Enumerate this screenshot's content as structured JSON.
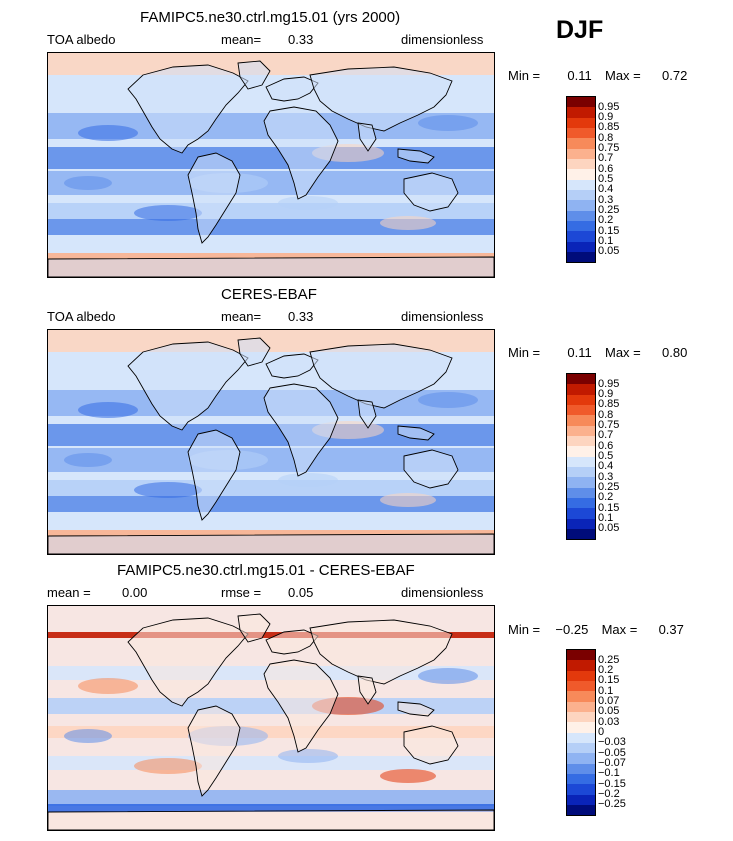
{
  "season": "DJF",
  "panels": [
    {
      "title": "FAMIPC5.ne30.ctrl.mg15.01 (yrs 2000)",
      "left_label": "TOA albedo",
      "mid_label": "mean=",
      "mid_value": "0.33",
      "units": "dimensionless",
      "min_label": "Min =",
      "min_value": "0.11",
      "max_label": "Max =",
      "max_value": "0.72",
      "levels": [
        "0.95",
        "0.9",
        "0.85",
        "0.8",
        "0.75",
        "0.7",
        "0.6",
        "0.5",
        "0.4",
        "0.3",
        "0.25",
        "0.2",
        "0.15",
        "0.1",
        "0.05"
      ],
      "colors": [
        "#7a0000",
        "#c11a00",
        "#e3390c",
        "#f05a2b",
        "#f78a5a",
        "#fbb18e",
        "#fdd5c0",
        "#fff1e8",
        "#d6e6fb",
        "#b5cff7",
        "#8fb3f2",
        "#5f8ee9",
        "#356ce3",
        "#1c48d6",
        "#0a24b8",
        "#000c7a"
      ]
    },
    {
      "title": "CERES-EBAF",
      "left_label": "TOA albedo",
      "mid_label": "mean=",
      "mid_value": "0.33",
      "units": "dimensionless",
      "min_label": "Min =",
      "min_value": "0.11",
      "max_label": "Max =",
      "max_value": "0.80",
      "levels": [
        "0.95",
        "0.9",
        "0.85",
        "0.8",
        "0.75",
        "0.7",
        "0.6",
        "0.5",
        "0.4",
        "0.3",
        "0.25",
        "0.2",
        "0.15",
        "0.1",
        "0.05"
      ],
      "colors": [
        "#7a0000",
        "#c11a00",
        "#e3390c",
        "#f05a2b",
        "#f78a5a",
        "#fbb18e",
        "#fdd5c0",
        "#fff1e8",
        "#d6e6fb",
        "#b5cff7",
        "#8fb3f2",
        "#5f8ee9",
        "#356ce3",
        "#1c48d6",
        "#0a24b8",
        "#000c7a"
      ]
    },
    {
      "title": "FAMIPC5.ne30.ctrl.mg15.01 - CERES-EBAF",
      "left_label": "mean =",
      "left_value": "0.00",
      "mid_label": "rmse =",
      "mid_value": "0.05",
      "units": "dimensionless",
      "min_label": "Min =",
      "min_value": "−0.25",
      "max_label": "Max =",
      "max_value": "0.37",
      "levels": [
        "0.25",
        "0.2",
        "0.15",
        "0.1",
        "0.07",
        "0.05",
        "0.03",
        "0",
        "−0.03",
        "−0.05",
        "−0.07",
        "−0.1",
        "−0.15",
        "−0.2",
        "−0.25"
      ],
      "colors": [
        "#7a0000",
        "#c11a00",
        "#e3390c",
        "#f05a2b",
        "#f78a5a",
        "#fbb18e",
        "#fdd5c0",
        "#fff1e8",
        "#d6e6fb",
        "#b5cff7",
        "#8fb3f2",
        "#5f8ee9",
        "#356ce3",
        "#1c48d6",
        "#0a24b8",
        "#000c7a"
      ]
    }
  ]
}
